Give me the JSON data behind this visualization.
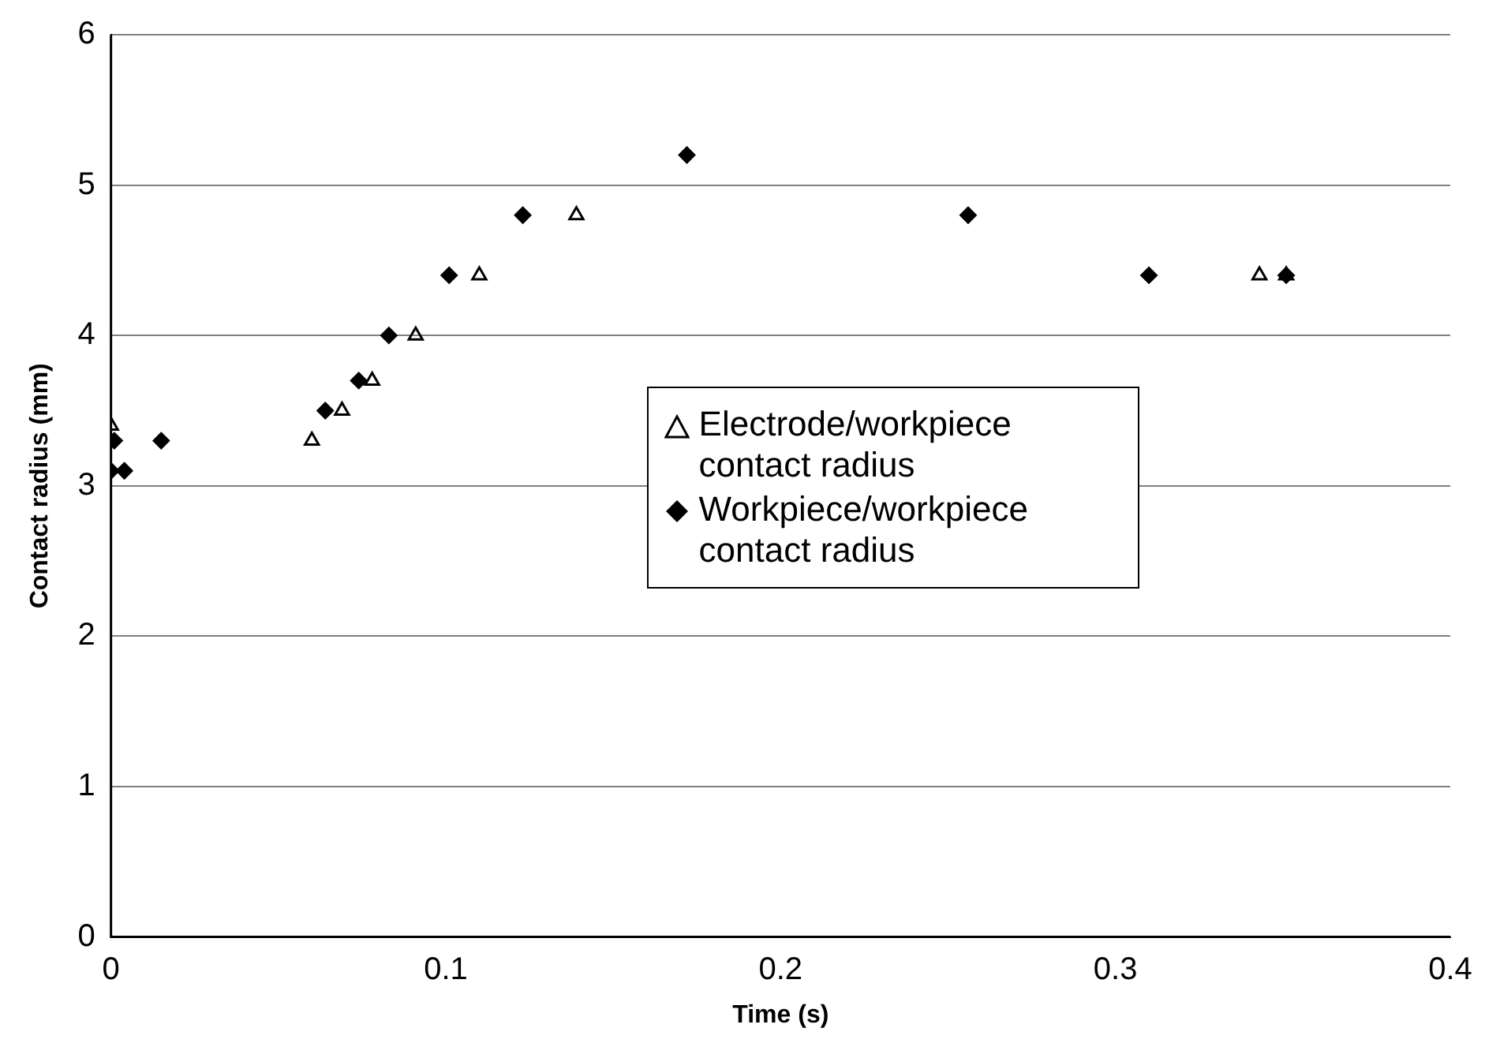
{
  "chart_data": {
    "type": "scatter",
    "xlabel": "Time (s)",
    "ylabel": "Contact radius (mm)",
    "xlim": [
      0,
      0.4
    ],
    "xticks": [
      0,
      0.1,
      0.2,
      0.3,
      0.4
    ],
    "ylim": [
      0,
      6
    ],
    "yticks": [
      0,
      1,
      2,
      3,
      4,
      5,
      6
    ],
    "grid": "y",
    "legend": "center",
    "series": [
      {
        "name": "Electrode/workpiece contact radius",
        "color": "#000000",
        "marker": "triangle",
        "x": [
          0,
          0.06,
          0.069,
          0.078,
          0.091,
          0.11,
          0.139,
          0.343,
          0.351
        ],
        "values": [
          3.4,
          3.3,
          3.5,
          3.7,
          4.0,
          4.4,
          4.8,
          4.4,
          4.4
        ]
      },
      {
        "name": "Workpiece/workpiece contact radius",
        "color": "#000000",
        "marker": "diamond",
        "x": [
          0,
          0.001,
          0.004,
          0.015,
          0.064,
          0.074,
          0.083,
          0.101,
          0.123,
          0.172,
          0.256,
          0.31,
          0.351
        ],
        "values": [
          3.1,
          3.3,
          3.1,
          3.3,
          3.5,
          3.7,
          4.0,
          4.4,
          4.8,
          5.2,
          4.8,
          4.4,
          4.4
        ]
      }
    ]
  }
}
